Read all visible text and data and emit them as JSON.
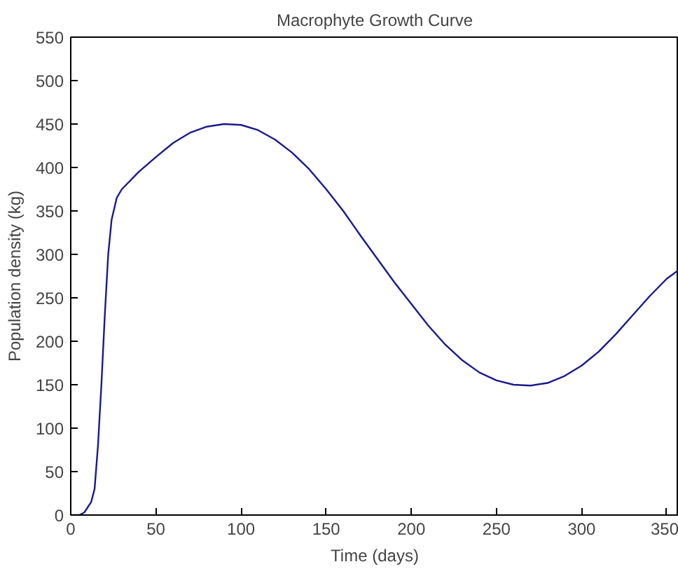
{
  "chart_data": {
    "type": "line",
    "title": "Macrophyte Growth Curve",
    "xlabel": "Time (days)",
    "ylabel": "Population density (kg)",
    "x": [
      0,
      5,
      8,
      12,
      14,
      16,
      18,
      20,
      22,
      24,
      27,
      30,
      40,
      50,
      60,
      70,
      80,
      90,
      100,
      110,
      120,
      130,
      140,
      150,
      160,
      170,
      180,
      190,
      200,
      210,
      220,
      230,
      240,
      250,
      260,
      270,
      280,
      290,
      300,
      310,
      320,
      330,
      340,
      350,
      357
    ],
    "series": [
      {
        "color": "#1a1a8c",
        "values": [
          0,
          0,
          3,
          15,
          30,
          80,
          150,
          230,
          300,
          340,
          365,
          375,
          395,
          412,
          428,
          440,
          447,
          450,
          449,
          443,
          432,
          417,
          398,
          375,
          350,
          322,
          295,
          268,
          243,
          218,
          196,
          178,
          164,
          155,
          150,
          149,
          152,
          160,
          172,
          188,
          208,
          230,
          252,
          272,
          282
        ]
      }
    ],
    "xlim": [
      0,
      357
    ],
    "ylim": [
      0,
      550
    ],
    "xticks": [
      0,
      50,
      100,
      150,
      200,
      250,
      300,
      350
    ],
    "yticks": [
      0,
      50,
      100,
      150,
      200,
      250,
      300,
      350,
      400,
      450,
      500,
      550
    ],
    "grid": false,
    "marker": "none",
    "line_style": "solid"
  }
}
